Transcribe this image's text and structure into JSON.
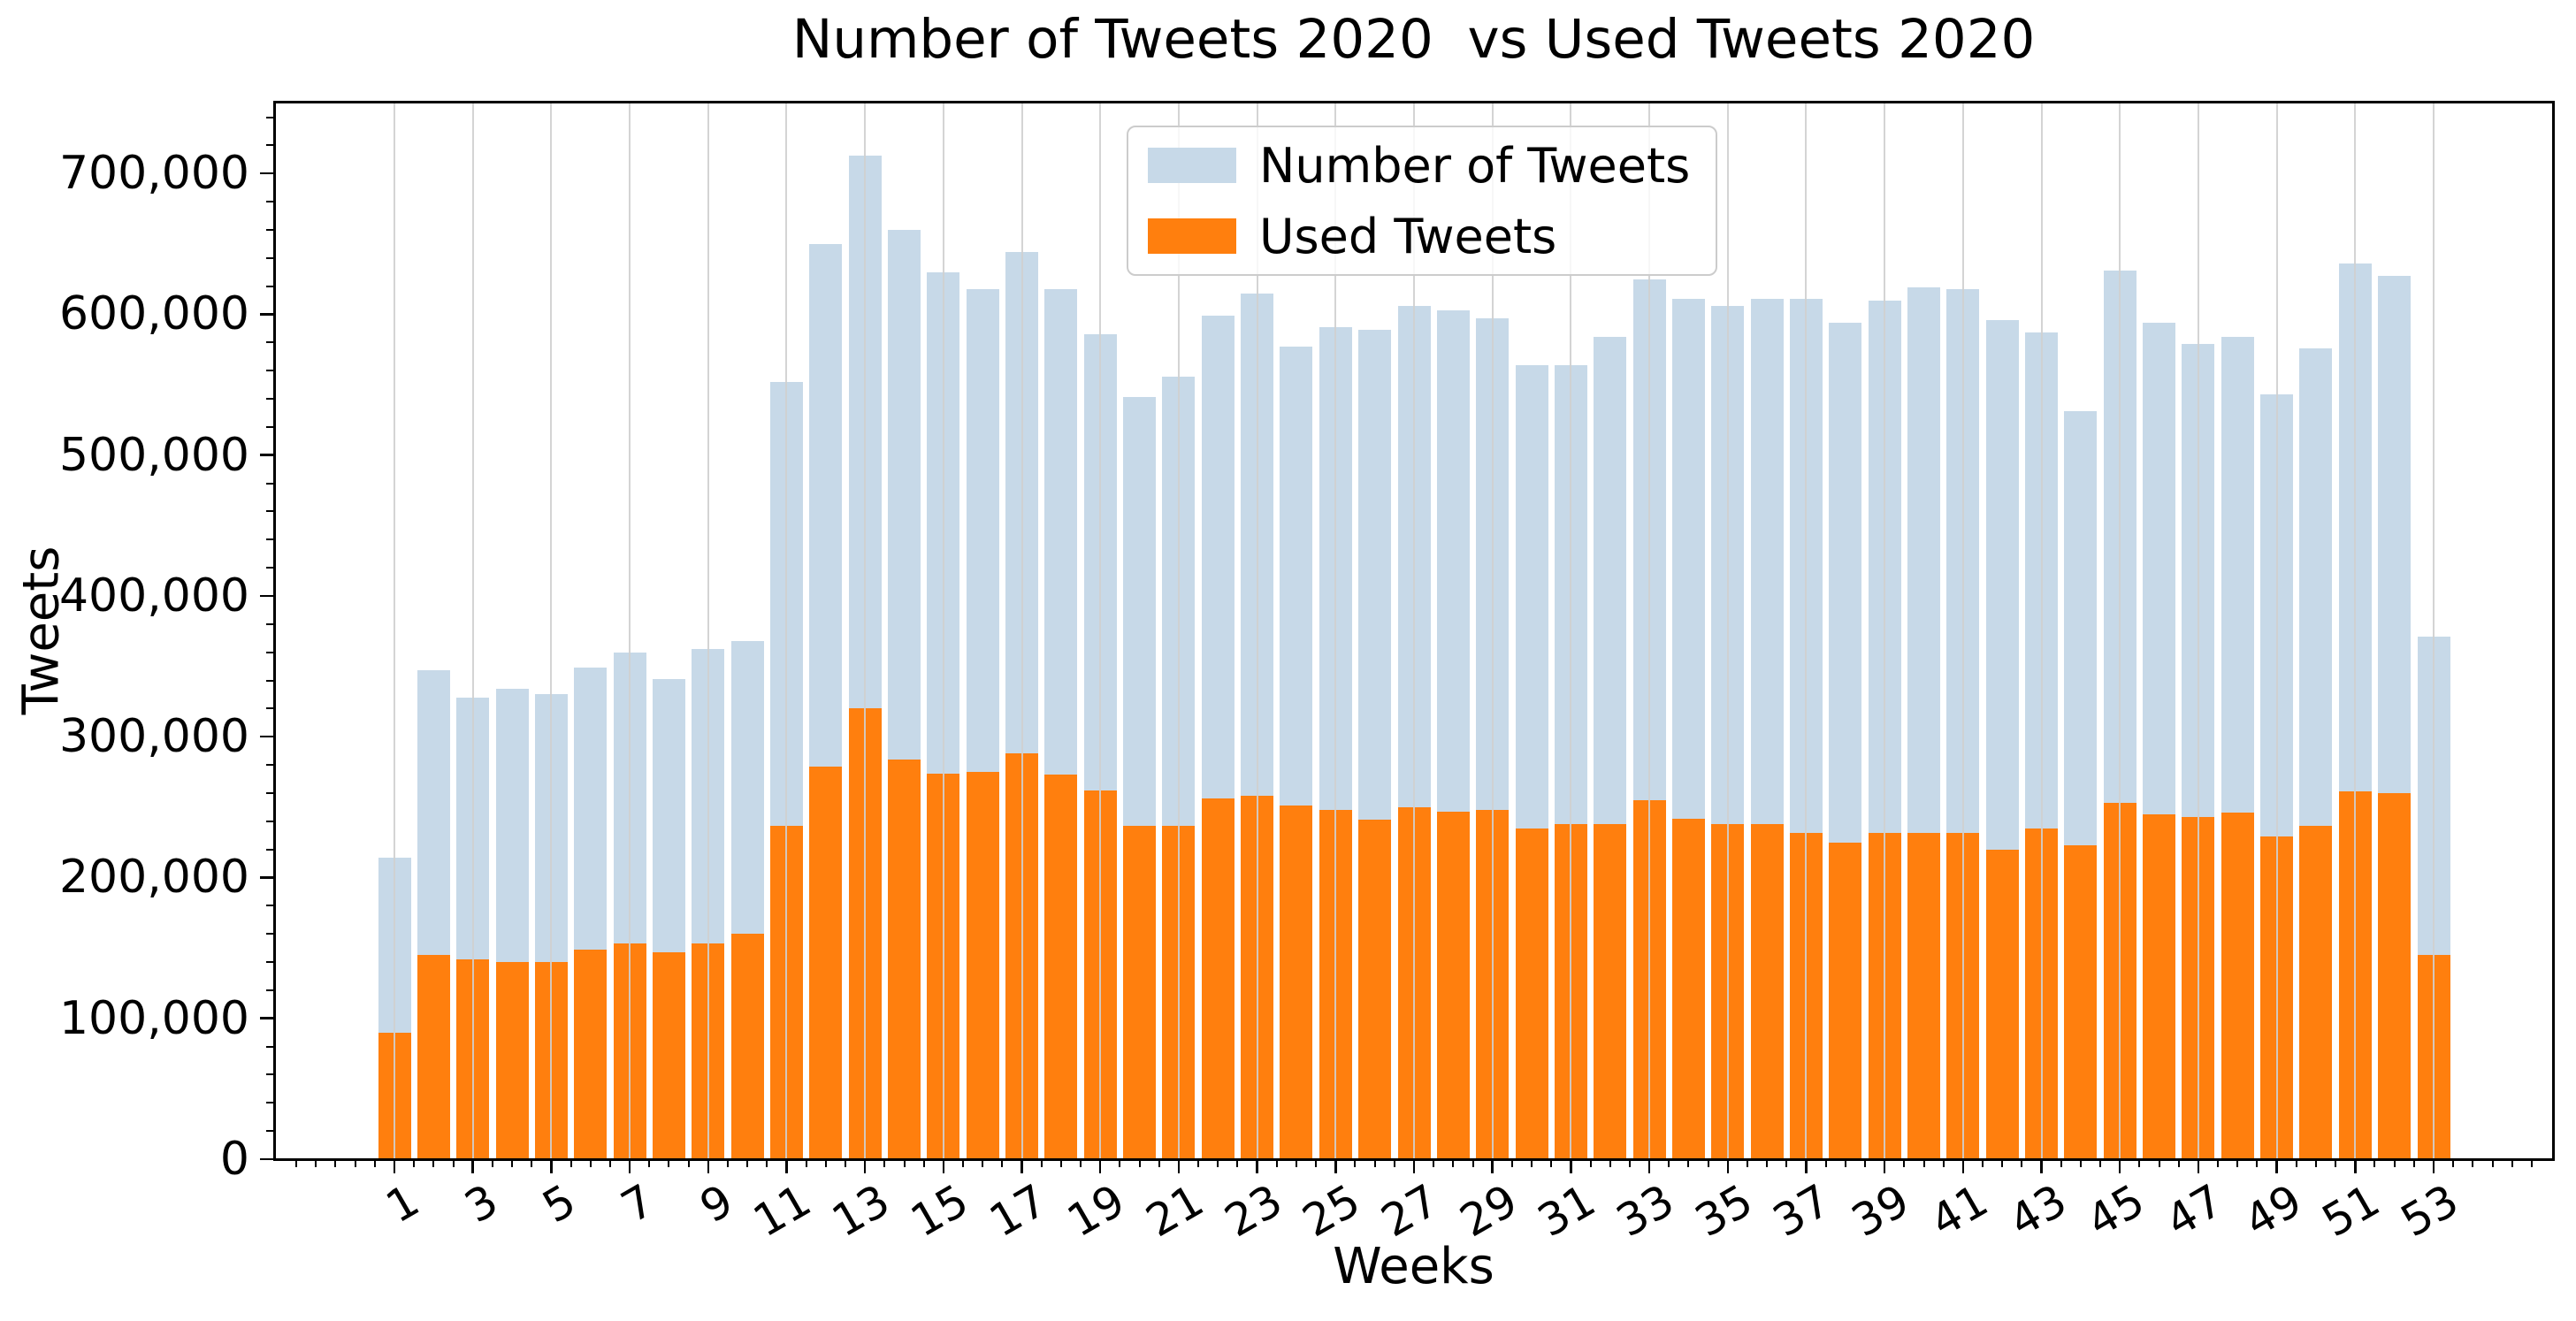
{
  "chart_data": {
    "type": "bar",
    "title": "Number of Tweets 2020  vs Used Tweets 2020",
    "xlabel": "Weeks",
    "ylabel": "Tweets",
    "categories": [
      1,
      2,
      3,
      4,
      5,
      6,
      7,
      8,
      9,
      10,
      11,
      12,
      13,
      14,
      15,
      16,
      17,
      18,
      19,
      20,
      21,
      22,
      23,
      24,
      25,
      26,
      27,
      28,
      29,
      30,
      31,
      32,
      33,
      34,
      35,
      36,
      37,
      38,
      39,
      40,
      41,
      42,
      43,
      44,
      45,
      46,
      47,
      48,
      49,
      50,
      51,
      52,
      53
    ],
    "series": [
      {
        "name": "Number of Tweets",
        "color": "#c7d9e8",
        "values": [
          214000,
          347000,
          328000,
          334000,
          330000,
          349000,
          360000,
          341000,
          362000,
          368000,
          552000,
          650000,
          713000,
          660000,
          630000,
          618000,
          644000,
          618000,
          586000,
          541000,
          556000,
          599000,
          615000,
          577000,
          591000,
          589000,
          606000,
          603000,
          597000,
          564000,
          564000,
          584000,
          625000,
          611000,
          606000,
          611000,
          611000,
          594000,
          610000,
          619000,
          618000,
          596000,
          587000,
          531000,
          631000,
          594000,
          579000,
          584000,
          543000,
          576000,
          636000,
          627000,
          371000
        ]
      },
      {
        "name": "Used Tweets",
        "color": "#ff7f0e",
        "values": [
          90000,
          145000,
          142000,
          140000,
          140000,
          149000,
          153000,
          147000,
          153000,
          160000,
          237000,
          279000,
          320000,
          284000,
          274000,
          275000,
          288000,
          273000,
          262000,
          237000,
          237000,
          256000,
          258000,
          251000,
          248000,
          241000,
          250000,
          247000,
          248000,
          235000,
          238000,
          238000,
          255000,
          242000,
          238000,
          238000,
          232000,
          225000,
          232000,
          232000,
          232000,
          220000,
          235000,
          223000,
          253000,
          245000,
          243000,
          246000,
          229000,
          237000,
          261000,
          260000,
          145000
        ]
      }
    ],
    "bar_style": "overlaid",
    "ylim": [
      0,
      751000
    ],
    "yticks_major": [
      0,
      100000,
      200000,
      300000,
      400000,
      500000,
      600000,
      700000
    ],
    "ytick_minor_step": 20000,
    "xticks_major": [
      1,
      3,
      5,
      7,
      9,
      11,
      13,
      15,
      17,
      19,
      21,
      23,
      25,
      27,
      29,
      31,
      33,
      35,
      37,
      39,
      41,
      43,
      45,
      47,
      49,
      51,
      53
    ],
    "xtick_minor_step": 0.5,
    "xtick_label_rotation_deg": 30,
    "grid": {
      "axis": "x",
      "color": "#cfcfcf",
      "lines_on_top_of_bars": true
    },
    "legend": {
      "location": "upper center",
      "labels": [
        "Number of Tweets",
        "Used Tweets"
      ]
    },
    "spine_color": "#000000",
    "background": "#ffffff"
  }
}
